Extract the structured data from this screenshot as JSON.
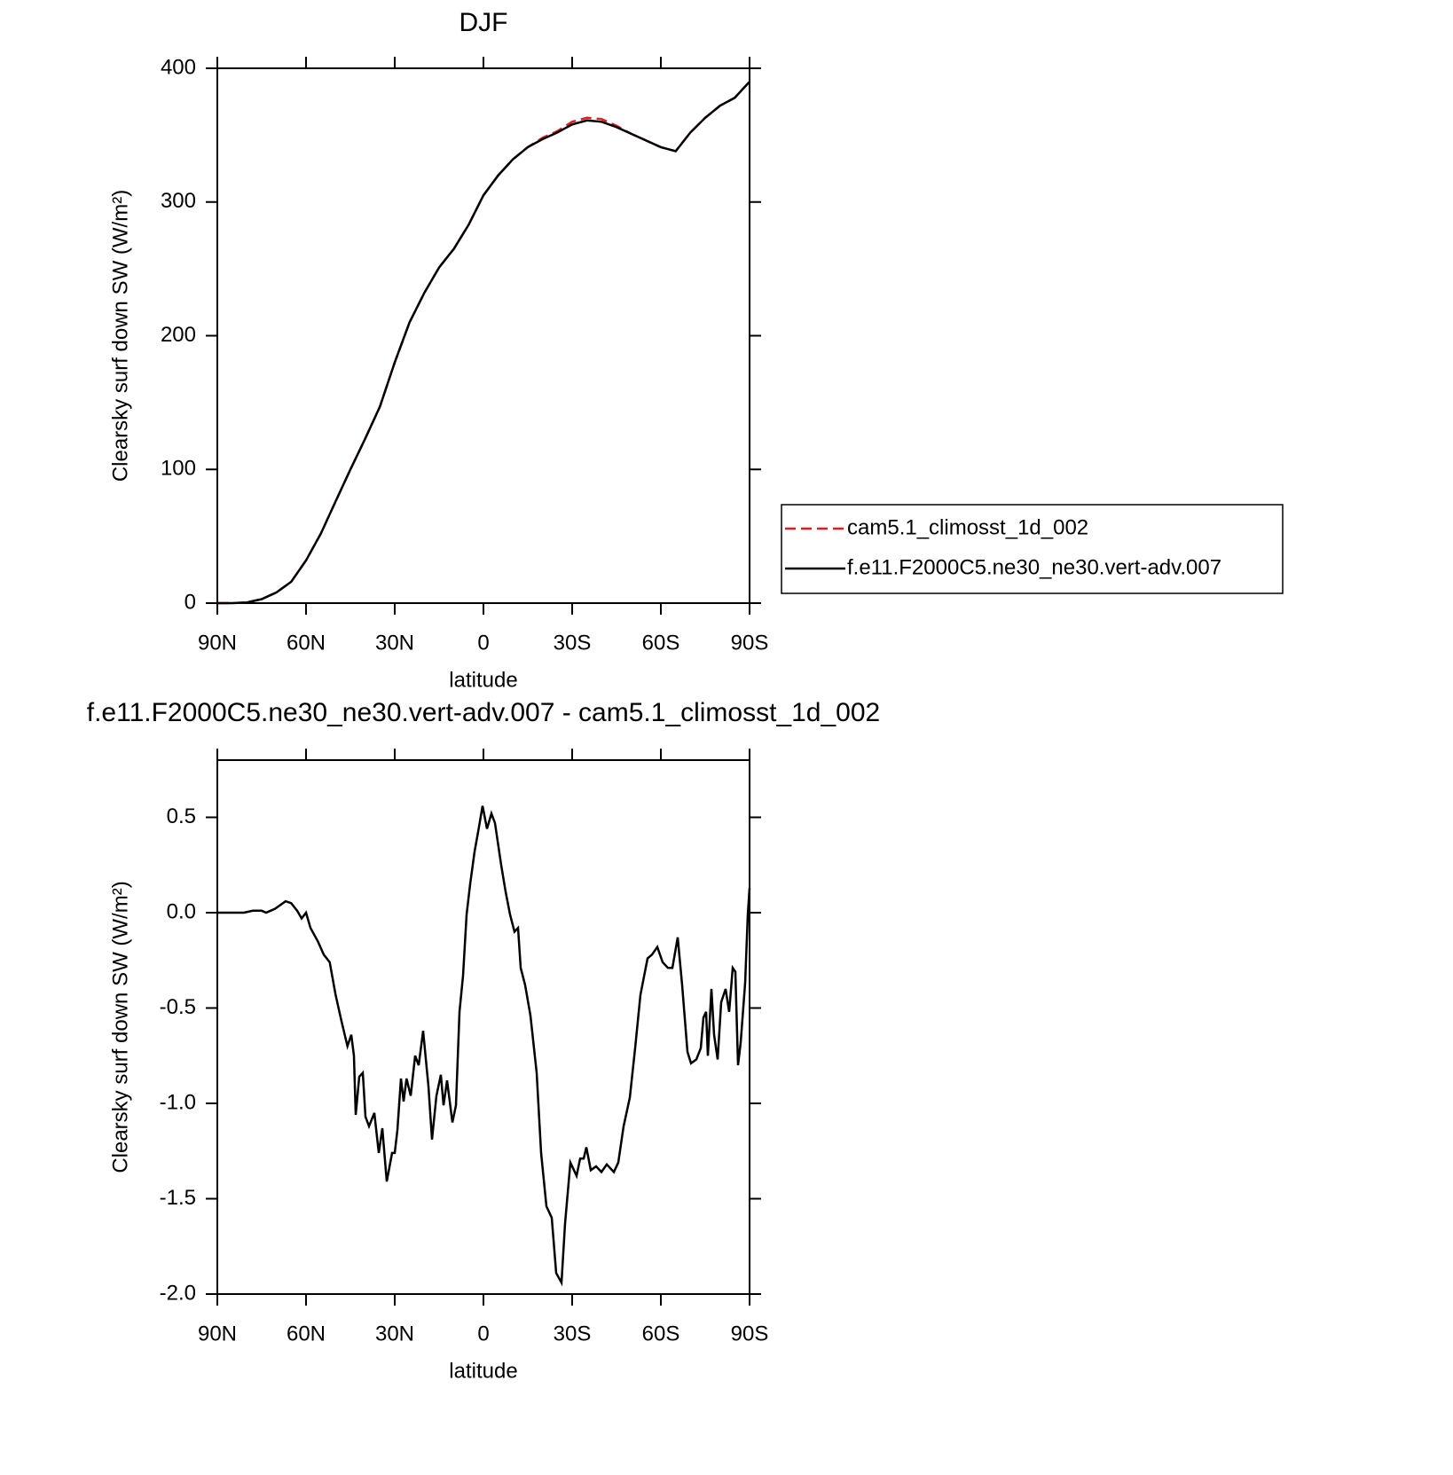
{
  "chart_data": [
    {
      "type": "line",
      "title": "DJF",
      "xlabel": "latitude",
      "ylabel": "Clearsky surf down SW (W/m²)",
      "xlim": [
        90,
        -90
      ],
      "xticks": [
        {
          "value": 90,
          "label": "90N"
        },
        {
          "value": 60,
          "label": "60N"
        },
        {
          "value": 30,
          "label": "30N"
        },
        0,
        {
          "value": -30,
          "label": "30S"
        },
        {
          "value": -60,
          "label": "60S"
        },
        {
          "value": -90,
          "label": "90S"
        }
      ],
      "ylim": [
        0,
        400
      ],
      "yticks": [
        0,
        100,
        200,
        300,
        400
      ],
      "legend": "right",
      "x": [
        90,
        85,
        80,
        75,
        70,
        65,
        60,
        55,
        50,
        45,
        40,
        35,
        30,
        25,
        20,
        15,
        10,
        5,
        0,
        -5,
        -10,
        -15,
        -20,
        -25,
        -30,
        -35,
        -40,
        -45,
        -50,
        -55,
        -60,
        -65,
        -70,
        -75,
        -80,
        -85,
        -90
      ],
      "series": [
        {
          "name": "cam5.1_climosst_1d_002",
          "color": "#e41a1c",
          "linestyle": "dashed",
          "values": [
            0,
            0,
            0.5,
            3,
            8,
            16,
            32,
            52,
            76,
            100,
            123,
            147,
            180,
            210,
            232,
            251,
            265,
            283,
            305,
            320,
            332,
            341,
            348,
            353,
            360,
            363,
            362,
            357,
            351,
            346,
            341,
            338,
            352,
            363,
            372,
            378,
            390
          ]
        },
        {
          "name": "f.e11.F2000C5.ne30_ne30.vert-adv.007",
          "color": "#000000",
          "linestyle": "solid",
          "values": [
            0,
            0,
            0.5,
            3,
            8,
            16,
            32,
            52,
            76,
            100,
            123,
            147,
            180,
            210,
            232,
            251,
            265,
            283,
            305,
            320,
            332,
            341,
            347,
            352,
            358,
            361,
            360,
            356,
            351,
            346,
            341,
            338,
            352,
            363,
            372,
            378,
            390
          ]
        }
      ]
    },
    {
      "type": "line",
      "title": "f.e11.F2000C5.ne30_ne30.vert-adv.007 - cam5.1_climosst_1d_002",
      "xlabel": "latitude",
      "ylabel": "Clearsky surf down SW (W/m²)",
      "xlim": [
        90,
        -90
      ],
      "xticks": [
        {
          "value": 90,
          "label": "90N"
        },
        {
          "value": 60,
          "label": "60N"
        },
        {
          "value": 30,
          "label": "30N"
        },
        0,
        {
          "value": -30,
          "label": "30S"
        },
        {
          "value": -60,
          "label": "60S"
        },
        {
          "value": -90,
          "label": "90S"
        }
      ],
      "ylim": [
        -2,
        0.8
      ],
      "yticks": [
        {
          "value": -2,
          "label": "-2.0"
        },
        -1.5,
        {
          "value": -1,
          "label": "-1.0"
        },
        -0.5,
        {
          "value": 0,
          "label": "0.0"
        },
        0.5
      ],
      "x": [
        90,
        81,
        78,
        75,
        73.5,
        72,
        70.5,
        66.9,
        65,
        63,
        61.5,
        60,
        58.5,
        56,
        54,
        52,
        50,
        48,
        46,
        44.7,
        43.8,
        43.2,
        42,
        40.8,
        39.9,
        38.7,
        36.9,
        35.4,
        34.2,
        32.7,
        30.9,
        30,
        29.1,
        27.9,
        27,
        26,
        24.6,
        23.1,
        21.9,
        20.4,
        18.6,
        17.4,
        15.9,
        14.4,
        13.5,
        12.3,
        10.5,
        9.3,
        8.1,
        6.9,
        5.7,
        4.5,
        3,
        1.5,
        0.3,
        -1.2,
        -2.7,
        -3.9,
        -6,
        -7.5,
        -9,
        -10.5,
        -11.7,
        -12.6,
        -14.1,
        -15.9,
        -18,
        -19.5,
        -21.3,
        -23.1,
        -24.6,
        -26.4,
        -27.6,
        -29.4,
        -31.5,
        -32.7,
        -33.9,
        -34.8,
        -36.3,
        -38.1,
        -39.9,
        -41.7,
        -44.1,
        -45.6,
        -47.4,
        -49.5,
        -51.3,
        -53.1,
        -55.5,
        -57,
        -58.8,
        -60.6,
        -62.4,
        -63.9,
        -65.7,
        -67.2,
        -69,
        -70.2,
        -72,
        -73.5,
        -74.4,
        -75.3,
        -75.9,
        -77.1,
        -78,
        -79.2,
        -80.4,
        -81.9,
        -83.1,
        -84.3,
        -85.2,
        -86.1,
        -87,
        -88.5,
        -89.4,
        -90
      ],
      "series": [
        {
          "name": "f.e11.F2000C5.ne30_ne30.vert-adv.007 - cam5.1_climosst_1d_002",
          "color": "#000000",
          "linestyle": "solid",
          "values": [
            0,
            0,
            0.01,
            0.01,
            0,
            0.01,
            0.02,
            0.06,
            0.05,
            0.01,
            -0.03,
            0,
            -0.08,
            -0.15,
            -0.22,
            -0.26,
            -0.43,
            -0.57,
            -0.7,
            -0.64,
            -0.75,
            -1.06,
            -0.86,
            -0.84,
            -1.07,
            -1.12,
            -1.05,
            -1.26,
            -1.13,
            -1.41,
            -1.26,
            -1.26,
            -1.14,
            -0.87,
            -0.99,
            -0.87,
            -0.96,
            -0.75,
            -0.8,
            -0.62,
            -0.91,
            -1.19,
            -0.96,
            -0.85,
            -1.01,
            -0.88,
            -1.1,
            -1.01,
            -0.52,
            -0.33,
            -0.01,
            0.15,
            0.32,
            0.45,
            0.56,
            0.44,
            0.52,
            0.47,
            0.25,
            0.11,
            -0.01,
            -0.1,
            -0.08,
            -0.29,
            -0.38,
            -0.54,
            -0.84,
            -1.26,
            -1.54,
            -1.6,
            -1.89,
            -1.94,
            -1.63,
            -1.31,
            -1.38,
            -1.29,
            -1.29,
            -1.23,
            -1.35,
            -1.33,
            -1.36,
            -1.32,
            -1.36,
            -1.31,
            -1.12,
            -0.97,
            -0.71,
            -0.43,
            -0.24,
            -0.22,
            -0.18,
            -0.26,
            -0.29,
            -0.29,
            -0.13,
            -0.38,
            -0.73,
            -0.79,
            -0.77,
            -0.71,
            -0.55,
            -0.52,
            -0.75,
            -0.4,
            -0.64,
            -0.77,
            -0.47,
            -0.4,
            -0.52,
            -0.29,
            -0.31,
            -0.8,
            -0.68,
            -0.37,
            -0.01,
            0.13
          ]
        }
      ]
    }
  ]
}
